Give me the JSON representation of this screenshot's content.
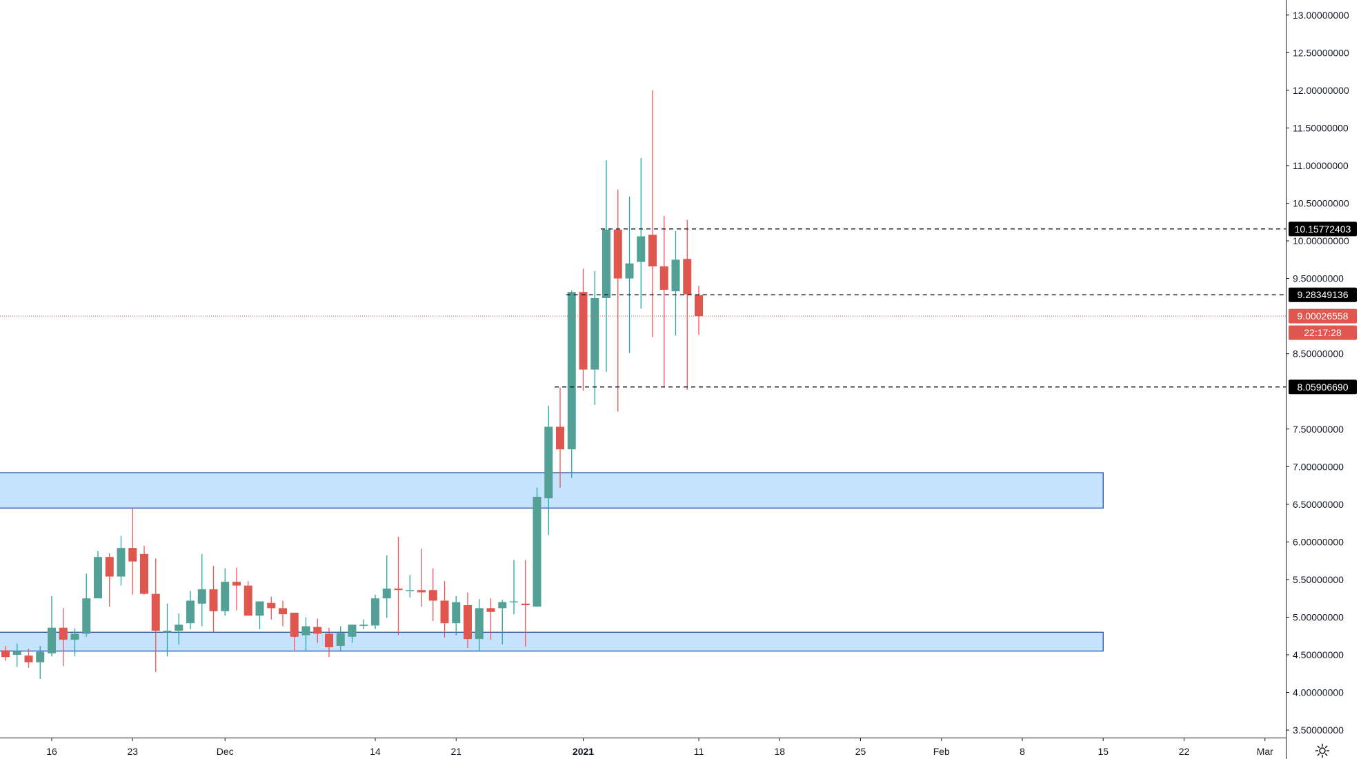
{
  "chart_data": {
    "type": "candlestick",
    "y_axis": {
      "position": "right",
      "range": [
        3.4,
        13.2
      ],
      "ticks": [
        {
          "value": 13.0,
          "label": "13.00000000"
        },
        {
          "value": 12.5,
          "label": "12.50000000"
        },
        {
          "value": 12.0,
          "label": "12.00000000"
        },
        {
          "value": 11.5,
          "label": "11.50000000"
        },
        {
          "value": 11.0,
          "label": "11.00000000"
        },
        {
          "value": 10.5,
          "label": "10.50000000"
        },
        {
          "value": 10.0,
          "label": "10.00000000"
        },
        {
          "value": 9.5,
          "label": "9.50000000"
        },
        {
          "value": 8.5,
          "label": "8.50000000"
        },
        {
          "value": 7.5,
          "label": "7.50000000"
        },
        {
          "value": 7.0,
          "label": "7.00000000"
        },
        {
          "value": 6.5,
          "label": "6.50000000"
        },
        {
          "value": 6.0,
          "label": "6.00000000"
        },
        {
          "value": 5.5,
          "label": "5.50000000"
        },
        {
          "value": 5.0,
          "label": "5.00000000"
        },
        {
          "value": 4.5,
          "label": "4.50000000"
        },
        {
          "value": 4.0,
          "label": "4.00000000"
        },
        {
          "value": 3.5,
          "label": "3.50000000"
        }
      ]
    },
    "x_axis": {
      "start_date": "2020-11-12",
      "end_date": "2021-03-13",
      "ticks": [
        {
          "date": "2020-11-16",
          "label": "16",
          "bold": false
        },
        {
          "date": "2020-11-23",
          "label": "23",
          "bold": false
        },
        {
          "date": "2020-12-01",
          "label": "Dec",
          "bold": false
        },
        {
          "date": "2020-12-14",
          "label": "14",
          "bold": false
        },
        {
          "date": "2020-12-21",
          "label": "21",
          "bold": false
        },
        {
          "date": "2021-01-01",
          "label": "2021",
          "bold": true
        },
        {
          "date": "2021-01-11",
          "label": "11",
          "bold": false
        },
        {
          "date": "2021-01-18",
          "label": "18",
          "bold": false
        },
        {
          "date": "2021-01-25",
          "label": "25",
          "bold": false
        },
        {
          "date": "2021-02-01",
          "label": "Feb",
          "bold": false
        },
        {
          "date": "2021-02-08",
          "label": "8",
          "bold": false
        },
        {
          "date": "2021-02-15",
          "label": "15",
          "bold": false
        },
        {
          "date": "2021-02-22",
          "label": "22",
          "bold": false
        },
        {
          "date": "2021-03-01",
          "label": "Mar",
          "bold": false
        }
      ]
    },
    "candles": [
      {
        "date": "2020-11-12",
        "o": 4.56,
        "h": 4.62,
        "l": 4.42,
        "c": 4.47
      },
      {
        "date": "2020-11-13",
        "o": 4.5,
        "h": 4.65,
        "l": 4.34,
        "c": 4.55
      },
      {
        "date": "2020-11-14",
        "o": 4.49,
        "h": 4.58,
        "l": 4.33,
        "c": 4.4
      },
      {
        "date": "2020-11-15",
        "o": 4.4,
        "h": 4.62,
        "l": 4.18,
        "c": 4.54
      },
      {
        "date": "2020-11-16",
        "o": 4.52,
        "h": 5.28,
        "l": 4.48,
        "c": 4.86
      },
      {
        "date": "2020-11-17",
        "o": 4.86,
        "h": 5.12,
        "l": 4.35,
        "c": 4.7
      },
      {
        "date": "2020-11-18",
        "o": 4.7,
        "h": 4.85,
        "l": 4.48,
        "c": 4.78
      },
      {
        "date": "2020-11-19",
        "o": 4.78,
        "h": 5.58,
        "l": 4.74,
        "c": 5.25
      },
      {
        "date": "2020-11-20",
        "o": 5.25,
        "h": 5.88,
        "l": 5.25,
        "c": 5.8
      },
      {
        "date": "2020-11-21",
        "o": 5.8,
        "h": 5.85,
        "l": 5.14,
        "c": 5.54
      },
      {
        "date": "2020-11-22",
        "o": 5.54,
        "h": 6.08,
        "l": 5.42,
        "c": 5.92
      },
      {
        "date": "2020-11-23",
        "o": 5.92,
        "h": 6.45,
        "l": 5.3,
        "c": 5.74
      },
      {
        "date": "2020-11-24",
        "o": 5.84,
        "h": 5.95,
        "l": 5.3,
        "c": 5.31
      },
      {
        "date": "2020-11-25",
        "o": 5.31,
        "h": 5.78,
        "l": 4.27,
        "c": 4.82
      },
      {
        "date": "2020-11-26",
        "o": 4.8,
        "h": 5.18,
        "l": 4.48,
        "c": 4.82
      },
      {
        "date": "2020-11-27",
        "o": 4.82,
        "h": 5.05,
        "l": 4.64,
        "c": 4.9
      },
      {
        "date": "2020-11-28",
        "o": 4.92,
        "h": 5.35,
        "l": 4.84,
        "c": 5.22
      },
      {
        "date": "2020-11-29",
        "o": 5.18,
        "h": 5.84,
        "l": 4.88,
        "c": 5.37
      },
      {
        "date": "2020-11-30",
        "o": 5.37,
        "h": 5.68,
        "l": 4.8,
        "c": 5.08
      },
      {
        "date": "2020-12-01",
        "o": 5.08,
        "h": 5.65,
        "l": 5.02,
        "c": 5.47
      },
      {
        "date": "2020-12-02",
        "o": 5.47,
        "h": 5.66,
        "l": 5.09,
        "c": 5.42
      },
      {
        "date": "2020-12-03",
        "o": 5.42,
        "h": 5.48,
        "l": 5.03,
        "c": 5.02
      },
      {
        "date": "2020-12-04",
        "o": 5.02,
        "h": 5.16,
        "l": 4.84,
        "c": 5.21
      },
      {
        "date": "2020-12-05",
        "o": 5.19,
        "h": 5.27,
        "l": 4.97,
        "c": 5.12
      },
      {
        "date": "2020-12-06",
        "o": 5.12,
        "h": 5.22,
        "l": 4.88,
        "c": 5.04
      },
      {
        "date": "2020-12-07",
        "o": 5.06,
        "h": 5.06,
        "l": 4.56,
        "c": 4.74
      },
      {
        "date": "2020-12-08",
        "o": 4.76,
        "h": 5.0,
        "l": 4.56,
        "c": 4.88
      },
      {
        "date": "2020-12-09",
        "o": 4.87,
        "h": 4.98,
        "l": 4.66,
        "c": 4.78
      },
      {
        "date": "2020-12-10",
        "o": 4.78,
        "h": 4.86,
        "l": 4.47,
        "c": 4.6
      },
      {
        "date": "2020-12-11",
        "o": 4.62,
        "h": 4.88,
        "l": 4.55,
        "c": 4.79
      },
      {
        "date": "2020-12-12",
        "o": 4.74,
        "h": 4.9,
        "l": 4.66,
        "c": 4.9
      },
      {
        "date": "2020-12-13",
        "o": 4.89,
        "h": 4.97,
        "l": 4.84,
        "c": 4.9
      },
      {
        "date": "2020-12-14",
        "o": 4.89,
        "h": 5.3,
        "l": 4.84,
        "c": 5.25
      },
      {
        "date": "2020-12-15",
        "o": 5.25,
        "h": 5.82,
        "l": 4.99,
        "c": 5.38
      },
      {
        "date": "2020-12-16",
        "o": 5.38,
        "h": 6.07,
        "l": 4.76,
        "c": 5.36
      },
      {
        "date": "2020-12-17",
        "o": 5.36,
        "h": 5.56,
        "l": 5.26,
        "c": 5.36
      },
      {
        "date": "2020-12-18",
        "o": 5.36,
        "h": 5.91,
        "l": 5.14,
        "c": 5.33
      },
      {
        "date": "2020-12-19",
        "o": 5.36,
        "h": 5.65,
        "l": 4.95,
        "c": 5.22
      },
      {
        "date": "2020-12-20",
        "o": 5.22,
        "h": 5.48,
        "l": 4.73,
        "c": 4.92
      },
      {
        "date": "2020-12-21",
        "o": 4.92,
        "h": 5.28,
        "l": 4.76,
        "c": 5.2
      },
      {
        "date": "2020-12-22",
        "o": 5.16,
        "h": 5.33,
        "l": 4.59,
        "c": 4.71
      },
      {
        "date": "2020-12-23",
        "o": 4.71,
        "h": 5.24,
        "l": 4.55,
        "c": 5.12
      },
      {
        "date": "2020-12-24",
        "o": 5.12,
        "h": 5.25,
        "l": 4.7,
        "c": 5.07
      },
      {
        "date": "2020-12-25",
        "o": 5.12,
        "h": 5.23,
        "l": 4.64,
        "c": 5.2
      },
      {
        "date": "2020-12-26",
        "o": 5.2,
        "h": 5.76,
        "l": 5.04,
        "c": 5.21
      },
      {
        "date": "2020-12-27",
        "o": 5.18,
        "h": 5.76,
        "l": 4.61,
        "c": 5.16
      },
      {
        "date": "2020-12-28",
        "o": 5.14,
        "h": 6.72,
        "l": 5.14,
        "c": 6.6
      },
      {
        "date": "2020-12-29",
        "o": 6.58,
        "h": 7.81,
        "l": 6.09,
        "c": 7.53
      },
      {
        "date": "2020-12-30",
        "o": 7.53,
        "h": 8.05,
        "l": 6.72,
        "c": 7.23
      },
      {
        "date": "2020-12-31",
        "o": 7.23,
        "h": 9.34,
        "l": 6.85,
        "c": 9.32
      },
      {
        "date": "2021-01-01",
        "o": 9.32,
        "h": 9.63,
        "l": 8.01,
        "c": 8.29
      },
      {
        "date": "2021-01-02",
        "o": 8.29,
        "h": 9.6,
        "l": 7.82,
        "c": 9.24
      },
      {
        "date": "2021-01-03",
        "o": 9.24,
        "h": 11.07,
        "l": 8.26,
        "c": 10.15
      },
      {
        "date": "2021-01-04",
        "o": 10.15,
        "h": 10.68,
        "l": 7.73,
        "c": 9.5
      },
      {
        "date": "2021-01-05",
        "o": 9.5,
        "h": 10.59,
        "l": 8.51,
        "c": 9.7
      },
      {
        "date": "2021-01-06",
        "o": 9.72,
        "h": 11.1,
        "l": 9.1,
        "c": 10.06
      },
      {
        "date": "2021-01-07",
        "o": 10.08,
        "h": 12.0,
        "l": 8.72,
        "c": 9.66
      },
      {
        "date": "2021-01-08",
        "o": 9.66,
        "h": 10.33,
        "l": 8.06,
        "c": 9.35
      },
      {
        "date": "2021-01-09",
        "o": 9.33,
        "h": 10.13,
        "l": 8.74,
        "c": 9.75
      },
      {
        "date": "2021-01-10",
        "o": 9.76,
        "h": 10.28,
        "l": 8.02,
        "c": 9.29
      },
      {
        "date": "2021-01-11",
        "o": 9.28,
        "h": 9.4,
        "l": 8.75,
        "c": 9.0
      }
    ],
    "colors": {
      "up": "#26a69a",
      "up_fill": "#53a196",
      "down": "#ef5350",
      "down_fill": "#e0574f"
    },
    "zones": [
      {
        "low": 6.45,
        "high": 6.92,
        "from": "2020-11-12",
        "to": "2021-02-15"
      },
      {
        "low": 4.55,
        "high": 4.8,
        "from": "2020-11-12",
        "to": "2021-02-15"
      }
    ],
    "levels": [
      {
        "value": 10.15772403,
        "label": "10.15772403",
        "from": "2021-01-03",
        "style": "dashed"
      },
      {
        "value": 9.28349136,
        "label": "9.28349136",
        "from": "2020-12-31",
        "style": "dashed"
      },
      {
        "value": 8.0590669,
        "label": "8.05906690",
        "from": "2020-12-30",
        "style": "dashed"
      }
    ],
    "current_price": {
      "value": 9.00026558,
      "label": "9.00026558",
      "countdown": "22:17:28"
    }
  }
}
